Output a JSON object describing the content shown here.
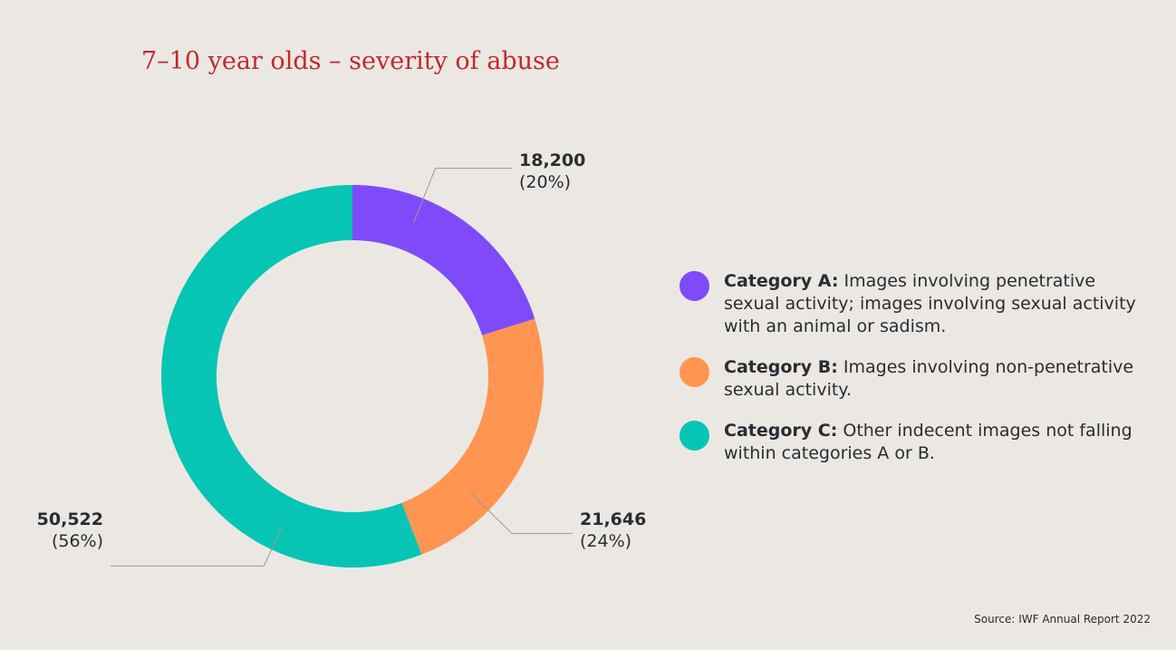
{
  "title": "7–10 year olds – severity of abuse",
  "source": "Source: IWF Annual Report 2022",
  "chart_data": {
    "type": "pie",
    "style": "donut",
    "title": "7–10 year olds – severity of abuse",
    "slices": [
      {
        "category": "Category A",
        "value": 18200,
        "value_label": "18,200",
        "percent_label": "(20%)",
        "color": "#7f4bfa"
      },
      {
        "category": "Category B",
        "value": 21646,
        "value_label": "21,646",
        "percent_label": "(24%)",
        "color": "#ff9550"
      },
      {
        "category": "Category C",
        "value": 50522,
        "value_label": "50,522",
        "percent_label": "(56%)",
        "color": "#06c5b5"
      }
    ],
    "legend_position": "right"
  },
  "legend": [
    {
      "label": "Category A:",
      "text": "Images involving penetrative sexual activity; images involving sexual activity with an animal or sadism.",
      "color": "#7f4bfa"
    },
    {
      "label": "Category B:",
      "text": "Images involving non-penetrative sexual activity.",
      "color": "#ff9550"
    },
    {
      "label": "Category C:",
      "text": "Other indecent images not falling within categories A or B.",
      "color": "#06c5b5"
    }
  ]
}
